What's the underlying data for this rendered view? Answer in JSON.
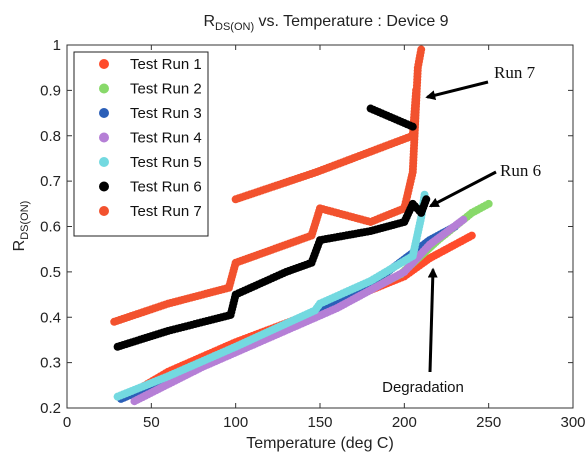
{
  "chart_data": {
    "type": "scatter",
    "title": "R",
    "title_sub": "DS(ON)",
    "title_rest": " vs. Temperature : Device 9",
    "xlabel": "Temperature (deg C)",
    "ylabel": "R",
    "ylabel_sub": "DS(ON)",
    "xlim": [
      0,
      300
    ],
    "ylim": [
      0.2,
      1.0
    ],
    "xticks": [
      "0",
      "50",
      "100",
      "150",
      "200",
      "250",
      "300"
    ],
    "yticks": [
      "0.2",
      "0.3",
      "0.4",
      "0.5",
      "0.6",
      "0.7",
      "0.8",
      "0.9",
      "1"
    ],
    "legend_position": "top-left",
    "series": [
      {
        "name": "Test Run 1",
        "color": "#ff4b2b",
        "x": [
          35,
          60,
          100,
          150,
          200,
          215,
          240
        ],
        "y": [
          0.225,
          0.28,
          0.345,
          0.415,
          0.49,
          0.53,
          0.58
        ]
      },
      {
        "name": "Test Run 2",
        "color": "#88d96a",
        "x": [
          40,
          80,
          120,
          160,
          198,
          220,
          240,
          250
        ],
        "y": [
          0.23,
          0.295,
          0.36,
          0.425,
          0.495,
          0.57,
          0.63,
          0.65
        ]
      },
      {
        "name": "Test Run 3",
        "color": "#2b5fb8",
        "x": [
          32,
          70,
          110,
          150,
          190,
          215,
          230
        ],
        "y": [
          0.22,
          0.28,
          0.35,
          0.415,
          0.5,
          0.57,
          0.6
        ]
      },
      {
        "name": "Test Run 4",
        "color": "#b57fd6",
        "x": [
          40,
          80,
          120,
          160,
          200,
          215,
          235
        ],
        "y": [
          0.215,
          0.29,
          0.355,
          0.42,
          0.5,
          0.56,
          0.615
        ]
      },
      {
        "name": "Test Run 5",
        "color": "#73d9e0",
        "x": [
          30,
          60,
          100,
          147,
          150,
          180,
          205,
          210,
          212
        ],
        "y": [
          0.225,
          0.27,
          0.335,
          0.415,
          0.43,
          0.48,
          0.535,
          0.62,
          0.67
        ]
      },
      {
        "name": "Test Run 6",
        "color": "#000000",
        "x": [
          30,
          60,
          97,
          100,
          130,
          145,
          150,
          180,
          200,
          205,
          210,
          213,
          180,
          205
        ],
        "y": [
          0.335,
          0.37,
          0.405,
          0.45,
          0.5,
          0.52,
          0.57,
          0.59,
          0.61,
          0.65,
          0.63,
          0.66,
          0.86,
          0.82
        ]
      },
      {
        "name": "Test Run 7",
        "color": "#f2522e",
        "x": [
          28,
          60,
          96,
          100,
          130,
          145,
          150,
          180,
          200,
          205,
          208,
          210,
          100,
          148,
          205,
          207
        ],
        "y": [
          0.39,
          0.43,
          0.465,
          0.52,
          0.56,
          0.58,
          0.64,
          0.61,
          0.64,
          0.72,
          0.95,
          0.99,
          0.66,
          0.72,
          0.8,
          0.9
        ]
      }
    ],
    "annotations": [
      {
        "text": "Run 7",
        "target_x": 210,
        "target_y": 0.885
      },
      {
        "text": "Run 6",
        "target_x": 212,
        "target_y": 0.645
      },
      {
        "text": "Degradation",
        "target_x": 217,
        "target_y": 0.505
      }
    ]
  }
}
